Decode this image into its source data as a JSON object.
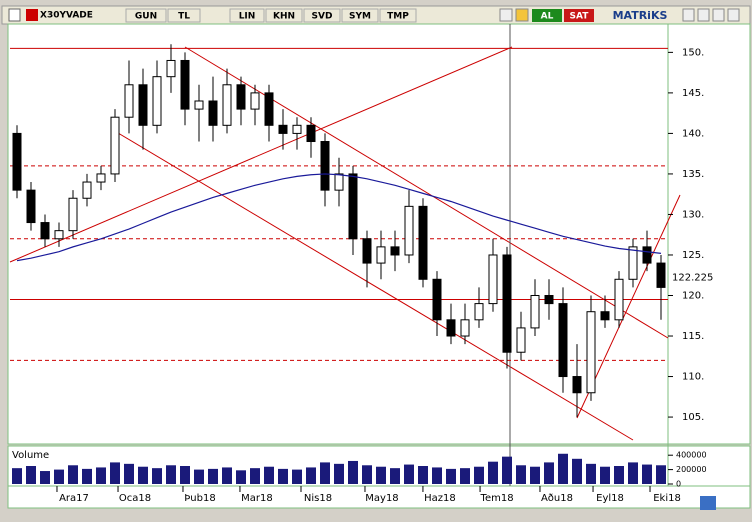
{
  "toolbar": {
    "symbol": "X30YVADE",
    "buttons": [
      "GUN",
      "TL",
      "LIN",
      "KHN",
      "SVD",
      "SYM",
      "TMP"
    ],
    "buy": "AL",
    "sell": "SAT",
    "brand": "MATRiKS"
  },
  "chart_data": {
    "type": "candlestick",
    "x_labels": [
      {
        "value": 4.07,
        "label": "Ara17"
      },
      {
        "value": 8.43,
        "label": "Oca18"
      },
      {
        "value": 13.07,
        "label": "Þub18"
      },
      {
        "value": 17.14,
        "label": "Mar18"
      },
      {
        "value": 21.5,
        "label": "Nis18"
      },
      {
        "value": 26.07,
        "label": "May18"
      },
      {
        "value": 30.21,
        "label": "Haz18"
      },
      {
        "value": 34.29,
        "label": "Tem18"
      },
      {
        "value": 38.57,
        "label": "Aðu18"
      },
      {
        "value": 42.36,
        "label": "Eyl18"
      },
      {
        "value": 46.43,
        "label": "Eki18"
      }
    ],
    "xlim": [
      -0.5,
      46.5
    ],
    "ylim": [
      101.8,
      153.5
    ],
    "yticks": [
      {
        "value": 105,
        "label": "105."
      },
      {
        "value": 110,
        "label": "110."
      },
      {
        "value": 115,
        "label": "115."
      },
      {
        "value": 120,
        "label": "120."
      },
      {
        "value": 125,
        "label": "125."
      },
      {
        "value": 130,
        "label": "130."
      },
      {
        "value": 135,
        "label": "135."
      },
      {
        "value": 140,
        "label": "140."
      },
      {
        "value": 145,
        "label": "145."
      },
      {
        "value": 150,
        "label": "150."
      }
    ],
    "last_price": 122.225,
    "up_color": "#ffffff",
    "down_color": "#000000",
    "ma_color": "#1a1a9a",
    "level_color": "#cc0000",
    "open": [
      140,
      133,
      129,
      127,
      128,
      132,
      134,
      135,
      142,
      146,
      141,
      147,
      149,
      143,
      144,
      141,
      146,
      143,
      145,
      141,
      140,
      141,
      139,
      133,
      135,
      127,
      124,
      126,
      125,
      131,
      122,
      117,
      115,
      117,
      119,
      125,
      113,
      116,
      120,
      119,
      110,
      108,
      118,
      117,
      122,
      126,
      124
    ],
    "high": [
      141,
      134,
      130,
      129,
      133,
      135,
      136,
      143,
      149,
      148,
      149,
      151,
      150,
      146,
      147,
      148,
      147,
      146,
      146,
      143,
      142,
      142,
      140,
      137,
      136,
      128,
      128,
      128,
      133,
      132,
      123,
      119,
      119,
      121,
      127,
      126,
      118,
      122,
      122,
      121,
      114,
      120,
      120,
      123,
      127,
      128,
      125
    ],
    "low": [
      132,
      128,
      126,
      126,
      127,
      131,
      133,
      134,
      140,
      138,
      140,
      145,
      141,
      139,
      139,
      140,
      141,
      141,
      139,
      138,
      138,
      137,
      131,
      131,
      125,
      121,
      122,
      123,
      124,
      121,
      115,
      114,
      114,
      116,
      118,
      111,
      112,
      115,
      117,
      108,
      105,
      107,
      116,
      116,
      121,
      123,
      117
    ],
    "close": [
      133,
      129,
      127,
      128,
      132,
      134,
      135,
      142,
      146,
      141,
      147,
      149,
      143,
      144,
      141,
      146,
      143,
      145,
      141,
      140,
      141,
      139,
      133,
      135,
      127,
      124,
      126,
      125,
      131,
      122,
      117,
      115,
      117,
      119,
      125,
      113,
      116,
      120,
      119,
      110,
      108,
      118,
      117,
      122,
      126,
      124,
      121
    ],
    "ma": [
      124.3,
      124.6,
      125,
      125.4,
      126,
      126.5,
      127,
      127.6,
      128.2,
      128.9,
      129.6,
      130.3,
      130.9,
      131.5,
      132.1,
      132.6,
      133.1,
      133.6,
      134,
      134.4,
      134.7,
      134.9,
      135,
      134.9,
      134.7,
      134.4,
      134,
      133.6,
      133.1,
      132.6,
      132.1,
      131.6,
      131,
      130.4,
      129.8,
      129.3,
      128.8,
      128.3,
      127.8,
      127.3,
      126.9,
      126.5,
      126.1,
      125.8,
      125.6,
      125.4,
      125.2
    ],
    "levels": [
      {
        "value": 150.5,
        "dashed": false
      },
      {
        "value": 136,
        "dashed": true
      },
      {
        "value": 127,
        "dashed": true
      },
      {
        "value": 119.5,
        "dashed": false
      },
      {
        "value": 112,
        "dashed": true
      }
    ],
    "volume_title": "Volume",
    "volume": [
      220000,
      250000,
      180000,
      200000,
      260000,
      210000,
      230000,
      300000,
      280000,
      240000,
      220000,
      260000,
      250000,
      200000,
      210000,
      230000,
      190000,
      220000,
      240000,
      210000,
      200000,
      230000,
      300000,
      280000,
      320000,
      260000,
      240000,
      220000,
      270000,
      250000,
      230000,
      210000,
      220000,
      240000,
      310000,
      380000,
      260000,
      240000,
      300000,
      420000,
      350000,
      280000,
      240000,
      250000,
      300000,
      270000,
      260000
    ],
    "vlim": [
      0,
      500000
    ],
    "vticks": [
      0,
      200000,
      400000
    ],
    "volume_color": "#1a1a7a"
  }
}
